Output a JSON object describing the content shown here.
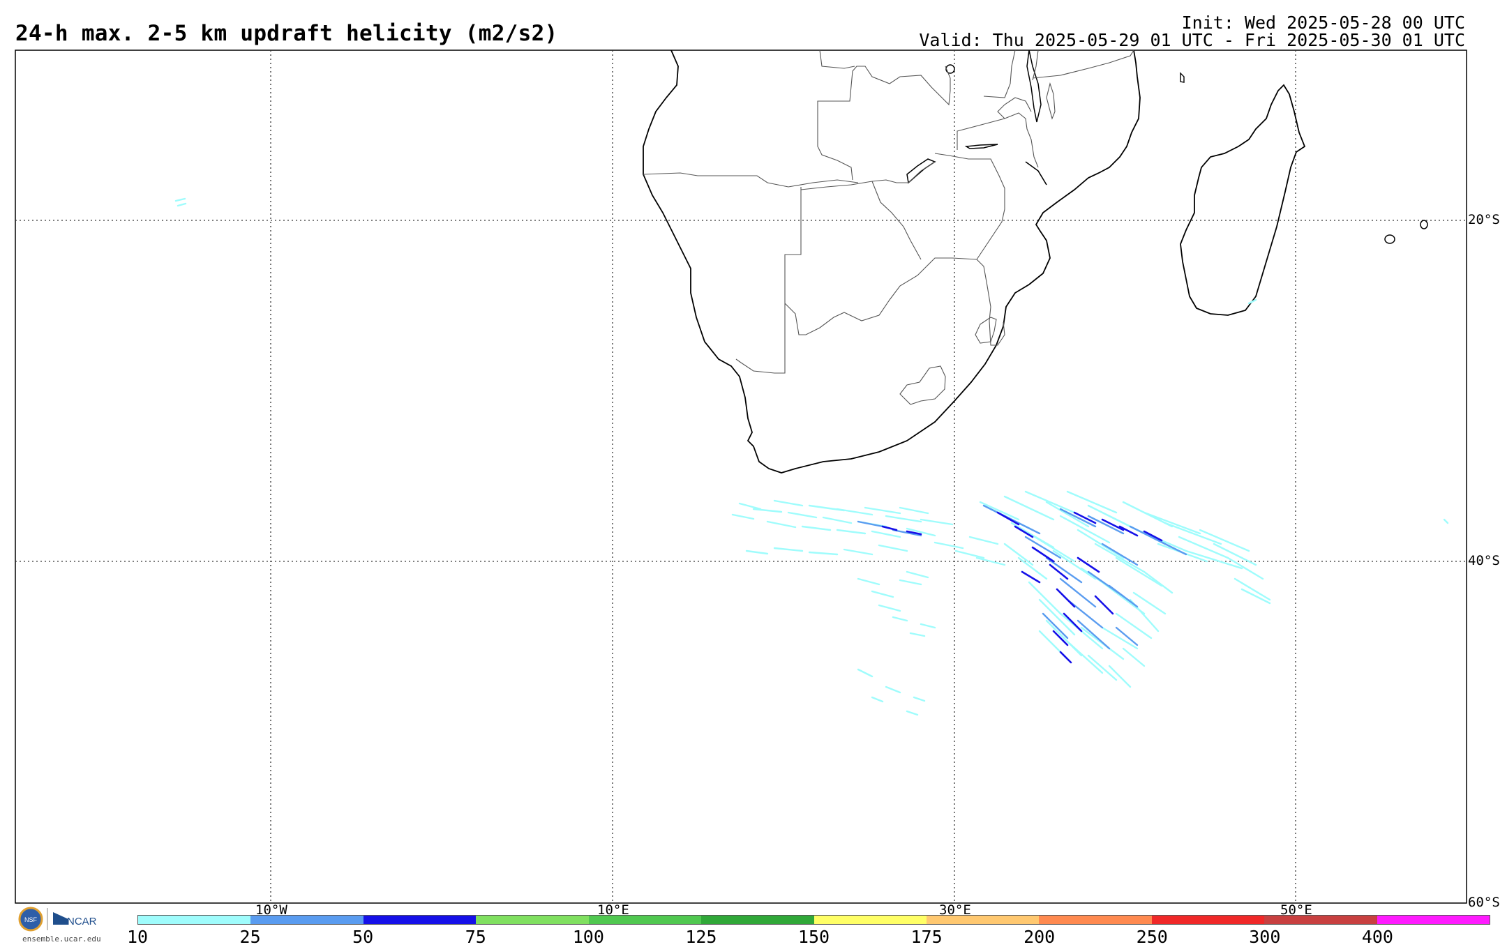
{
  "header": {
    "title": "24-h max. 2-5 km updraft helicity (m2/s2)",
    "init": "Init: Wed 2025-05-28 00 UTC",
    "valid": "Valid: Thu 2025-05-29 01 UTC - Fri 2025-05-30 01 UTC"
  },
  "map": {
    "lon_labels": [
      "10°W",
      "10°E",
      "30°E",
      "50°E"
    ],
    "lat_labels": [
      "20°S",
      "40°S",
      "60°S"
    ]
  },
  "colorbar": {
    "ticks": [
      "10",
      "25",
      "50",
      "75",
      "100",
      "125",
      "150",
      "175",
      "200",
      "250",
      "300",
      "400"
    ],
    "colors": [
      "#9ffcfc",
      "#5a9cf0",
      "#1510e8",
      "#80e060",
      "#50c850",
      "#30a838",
      "#ffff66",
      "#ffc870",
      "#ff8a50",
      "#f02828",
      "#c84040",
      "#ff1aff"
    ]
  },
  "logo": {
    "nsf": "NSF",
    "ncar": "NCAR",
    "url": "ensemble.ucar.edu"
  }
}
